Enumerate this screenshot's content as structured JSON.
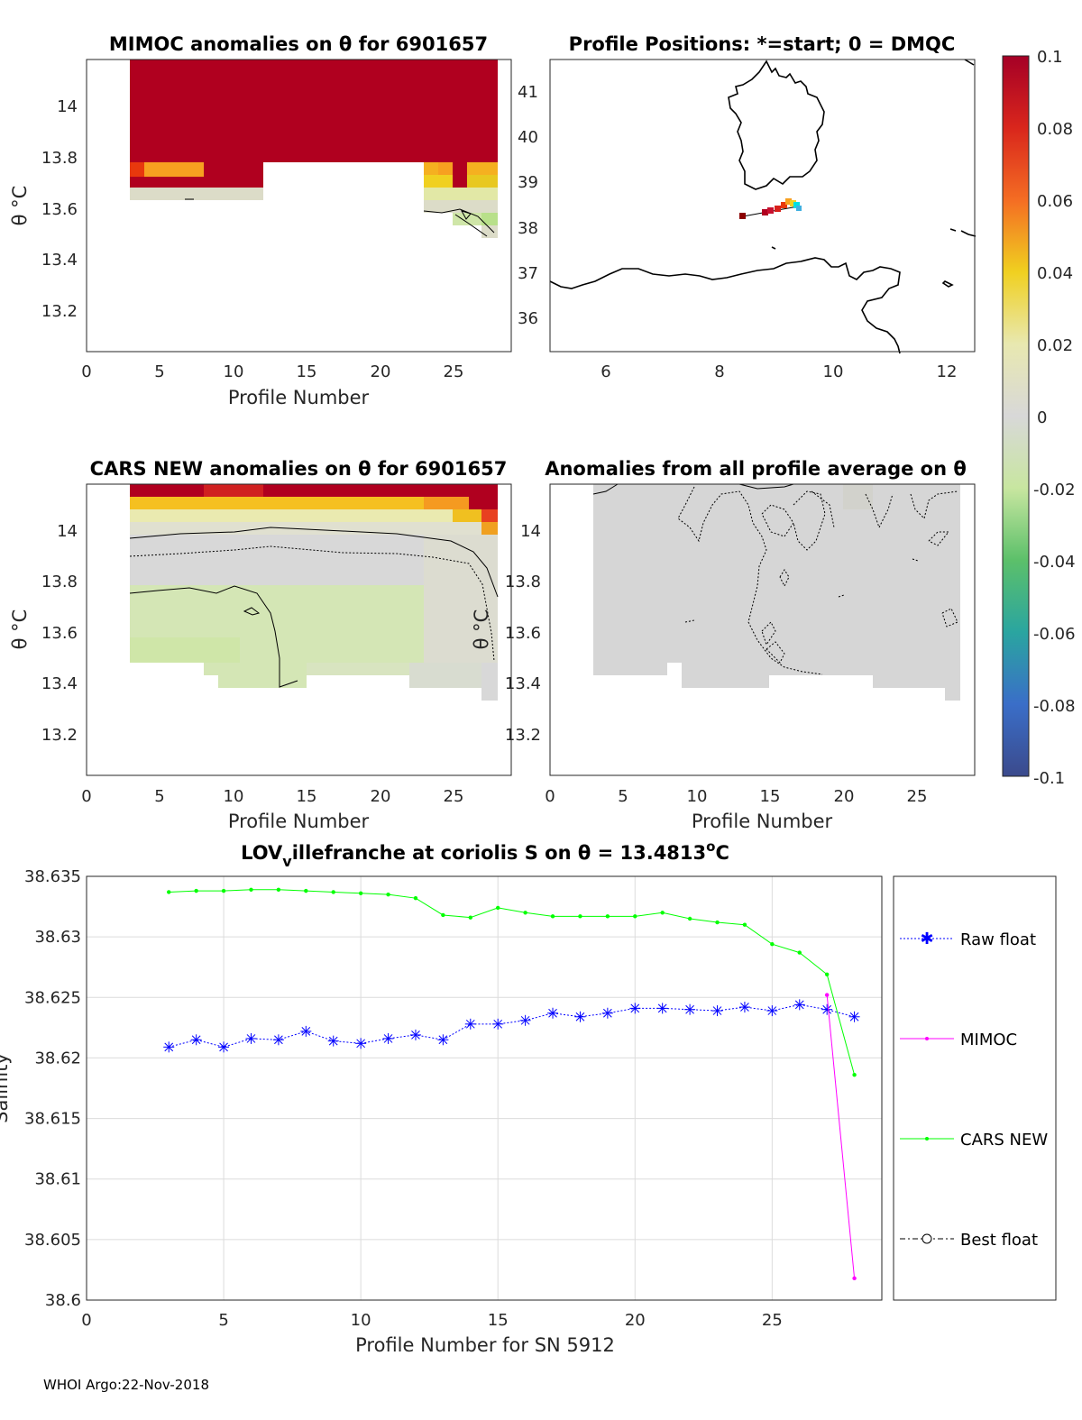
{
  "colors": {
    "raw_float": "#0000ff",
    "mimoc": "#ff00ff",
    "cars_new": "#00ff00",
    "best_float": "#000000",
    "mimoc_high": "#b0001f",
    "cars_background": "#d4e6b5",
    "map_coast": "#000000"
  },
  "panels": {
    "mimoc": {
      "title": "MIMOC anomalies on θ  for 6901657",
      "ylabel": "θ °C",
      "xlabel": "Profile Number",
      "yticks": [
        "14",
        "13.8",
        "13.6",
        "13.4",
        "13.2"
      ],
      "xticks": [
        "0",
        "5",
        "10",
        "15",
        "20",
        "25"
      ]
    },
    "map": {
      "title": "Profile Positions: *=start; 0 = DMQC",
      "yticks": [
        "41",
        "40",
        "39",
        "38",
        "37",
        "36"
      ],
      "xticks": [
        "6",
        "8",
        "10",
        "12"
      ]
    },
    "cars": {
      "title": "CARS NEW anomalies on θ for 6901657",
      "ylabel": "θ °C",
      "xlabel": "Profile Number",
      "yticks": [
        "14",
        "13.8",
        "13.6",
        "13.4",
        "13.2"
      ],
      "xticks": [
        "0",
        "5",
        "10",
        "15",
        "20",
        "25"
      ]
    },
    "profile_avg": {
      "title": "Anomalies from all profile average on θ",
      "ylabel": "θ °C",
      "xlabel": "Profile Number",
      "yticks": [
        "14",
        "13.8",
        "13.6",
        "13.4",
        "13.2"
      ],
      "xticks": [
        "0",
        "5",
        "10",
        "15",
        "20",
        "25"
      ]
    },
    "colorbar": {
      "ticks": [
        "0.1",
        "0.08",
        "0.06",
        "0.04",
        "0.02",
        "0",
        "-0.02",
        "-0.04",
        "-0.06",
        "-0.08",
        "-0.1"
      ]
    }
  },
  "footer": "WHOI Argo:22-Nov-2018",
  "chart_data": {
    "type": "line",
    "title_main": "LOV",
    "title_sub": "v",
    "title_rest": "illefranche at coriolis S on θ = 13.4813",
    "title_deg": "o",
    "title_unit": "C",
    "xlabel": "Profile Number for SN 5912",
    "ylabel": "Salinity",
    "xlim": [
      0,
      29
    ],
    "ylim": [
      38.6,
      38.635
    ],
    "xticks": [
      "0",
      "5",
      "10",
      "15",
      "20",
      "25"
    ],
    "yticks": [
      "38.635",
      "38.63",
      "38.625",
      "38.62",
      "38.615",
      "38.61",
      "38.605",
      "38.6"
    ],
    "legend": [
      "Raw float",
      "MIMOC",
      "CARS NEW",
      "Best float"
    ],
    "series": [
      {
        "name": "Raw float",
        "x": [
          3,
          4,
          5,
          6,
          7,
          8,
          9,
          10,
          11,
          12,
          13,
          14,
          15,
          16,
          17,
          18,
          19,
          20,
          21,
          22,
          23,
          24,
          25,
          26,
          27,
          28
        ],
        "values": [
          38.6209,
          38.6215,
          38.6209,
          38.6216,
          38.6215,
          38.6222,
          38.6214,
          38.6212,
          38.6216,
          38.6219,
          38.6215,
          38.6228,
          38.6228,
          38.6231,
          38.6237,
          38.6234,
          38.6237,
          38.6241,
          38.6241,
          38.624,
          38.6239,
          38.6242,
          38.6239,
          38.6244,
          38.624,
          38.6234
        ]
      },
      {
        "name": "MIMOC",
        "x": [
          27,
          28
        ],
        "values": [
          38.6252,
          38.6018
        ]
      },
      {
        "name": "CARS NEW",
        "x": [
          3,
          4,
          5,
          6,
          7,
          8,
          9,
          10,
          11,
          12,
          13,
          14,
          15,
          16,
          17,
          18,
          19,
          20,
          21,
          22,
          23,
          24,
          25,
          26,
          27,
          28
        ],
        "values": [
          38.6337,
          38.6338,
          38.6338,
          38.6339,
          38.6339,
          38.6338,
          38.6337,
          38.6336,
          38.6335,
          38.6332,
          38.6318,
          38.6316,
          38.6324,
          38.632,
          38.6317,
          38.6317,
          38.6317,
          38.6317,
          38.632,
          38.6315,
          38.6312,
          38.631,
          38.6294,
          38.6287,
          38.6269,
          38.6186
        ]
      }
    ]
  }
}
